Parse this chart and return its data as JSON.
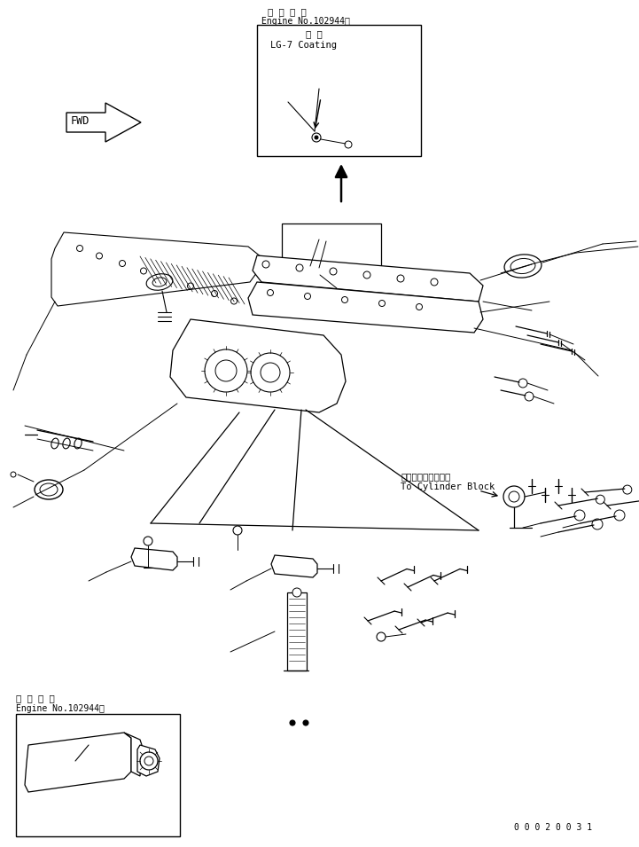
{
  "bg_color": "#ffffff",
  "line_color": "#000000",
  "title_top1": "適 用 号 機",
  "title_top2": "Engine No.102944～",
  "coating_label1": "塗 布",
  "coating_label2": "LG-7 Coating",
  "cylinder_label1": "シリンダブロックへ",
  "cylinder_label2": "To Cylinder Block",
  "bottom_left_label1": "適 用 号 機",
  "bottom_left_label2": "Engine No.102944～",
  "part_number": "0 0 0 2 0 0 3 1",
  "fwd_label": "FWD"
}
